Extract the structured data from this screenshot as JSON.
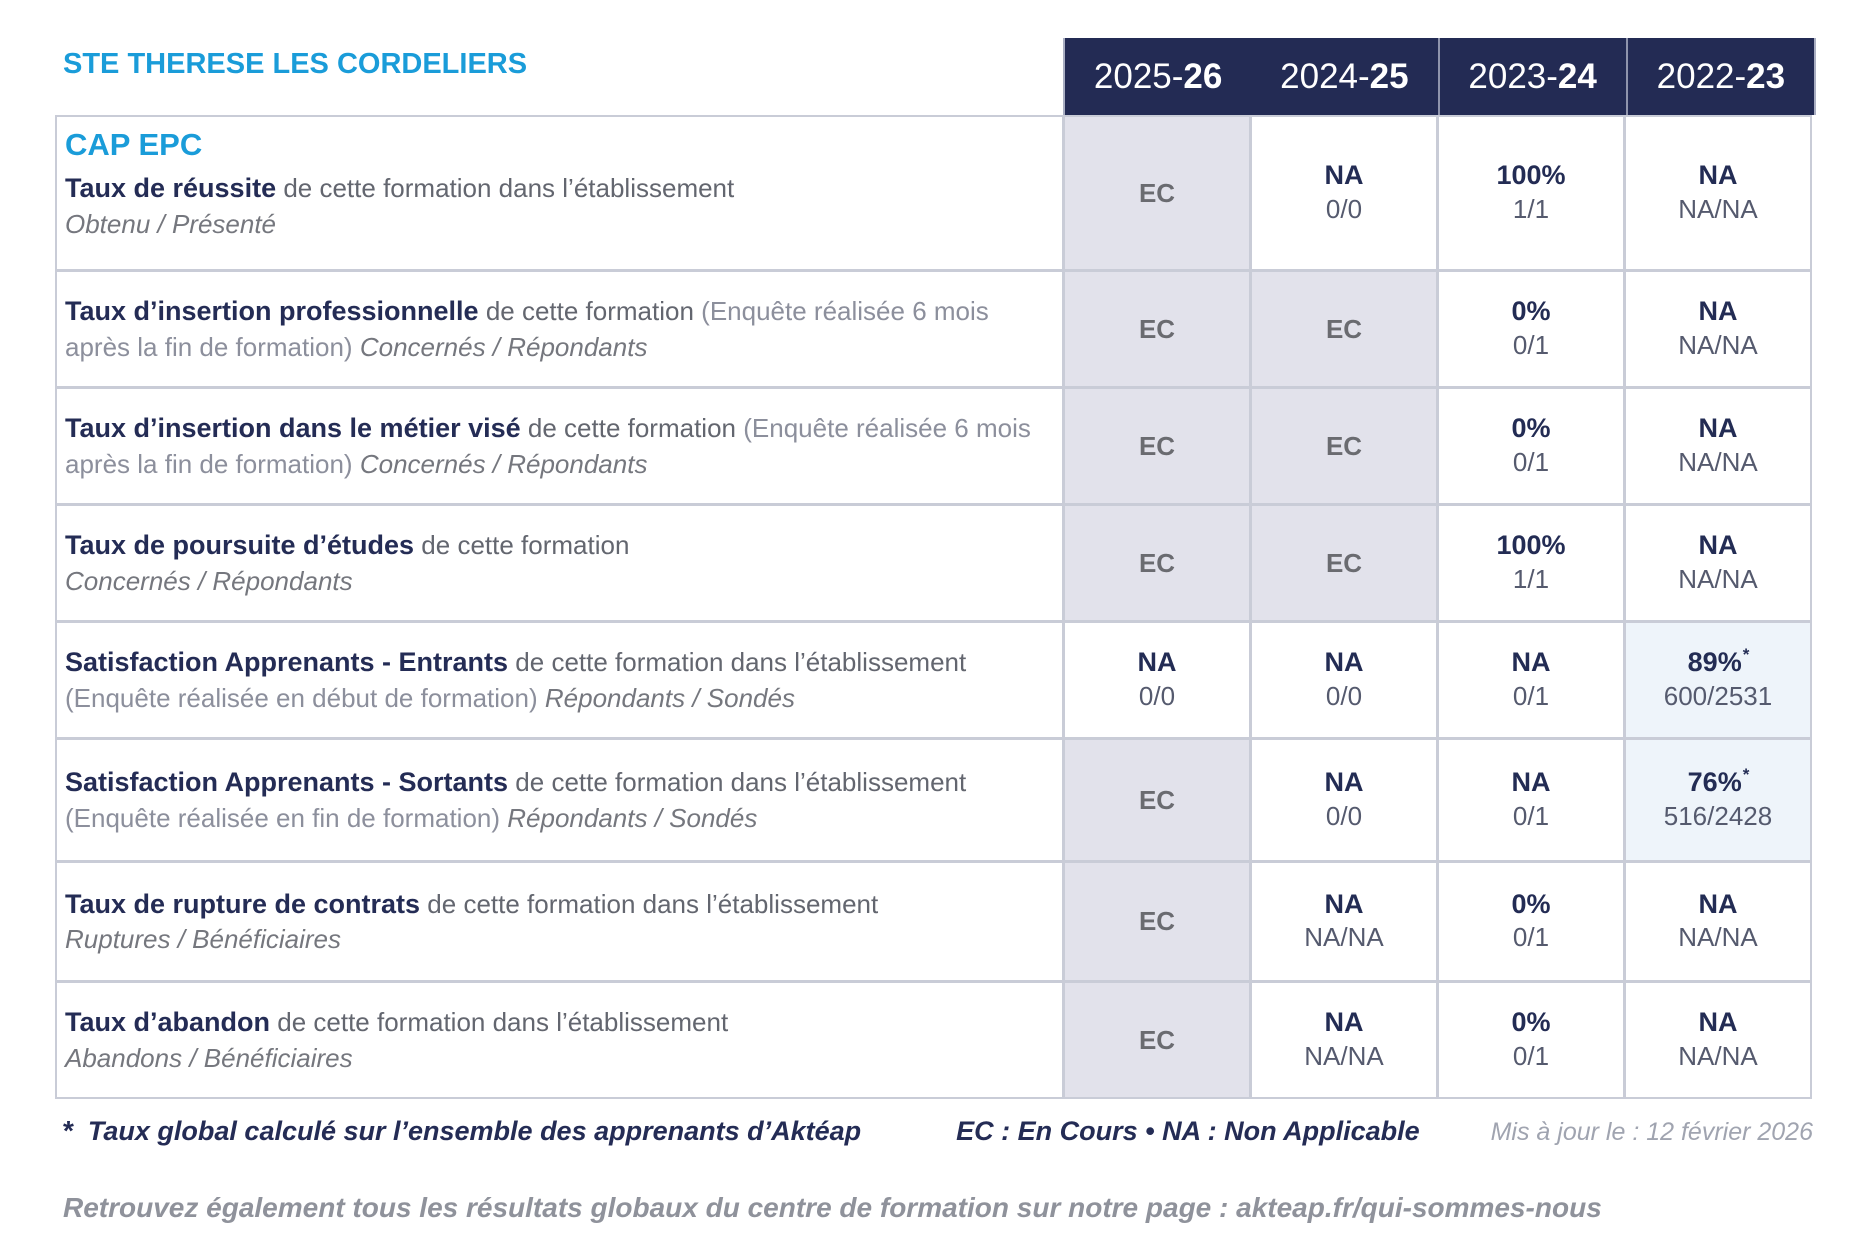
{
  "page": {
    "site_title": "STE THERESE LES CORDELIERS",
    "program_title": "CAP EPC"
  },
  "header": {
    "background": "#232B54",
    "years": [
      {
        "prefix": "2025-",
        "bold": "26"
      },
      {
        "prefix": "2024-",
        "bold": "25"
      },
      {
        "prefix": "2023-",
        "bold": "24"
      },
      {
        "prefix": "2022-",
        "bold": "23"
      }
    ]
  },
  "colors": {
    "accent_blue": "#1A9CD9",
    "navy": "#232B54",
    "ec_cell_bg": "#E2E2EB",
    "highlight_cell_bg": "#EEF4FA",
    "grid_border": "#C9CCD7",
    "gray_text": "#63666F"
  },
  "table": {
    "rows": [
      {
        "title": "Taux de réussite",
        "desc": "de cette formation dans l’établissement",
        "sub": "Obtenu / Présenté",
        "cells": [
          {
            "type": "ec",
            "main": "EC"
          },
          {
            "type": "value",
            "main": "NA",
            "sub": "0/0"
          },
          {
            "type": "value",
            "main": "100%",
            "sub": "1/1"
          },
          {
            "type": "value",
            "main": "NA",
            "sub": "NA/NA"
          }
        ]
      },
      {
        "title": "Taux d’insertion professionnelle",
        "desc": "de cette formation",
        "paren": "(Enquête réalisée 6 mois après la fin de formation)",
        "sub": "Concernés / Répondants",
        "cells": [
          {
            "type": "ec",
            "main": "EC"
          },
          {
            "type": "ec",
            "main": "EC"
          },
          {
            "type": "value",
            "main": "0%",
            "sub": "0/1"
          },
          {
            "type": "value",
            "main": "NA",
            "sub": "NA/NA"
          }
        ]
      },
      {
        "title": "Taux d’insertion dans le métier visé",
        "desc": "de cette formation",
        "paren": "(Enquête réalisée 6 mois après la fin de formation)",
        "sub": "Concernés / Répondants",
        "cells": [
          {
            "type": "ec",
            "main": "EC"
          },
          {
            "type": "ec",
            "main": "EC"
          },
          {
            "type": "value",
            "main": "0%",
            "sub": "0/1"
          },
          {
            "type": "value",
            "main": "NA",
            "sub": "NA/NA"
          }
        ]
      },
      {
        "title": "Taux de poursuite d’études",
        "desc": "de cette formation",
        "sub": "Concernés / Répondants",
        "cells": [
          {
            "type": "ec",
            "main": "EC"
          },
          {
            "type": "ec",
            "main": "EC"
          },
          {
            "type": "value",
            "main": "100%",
            "sub": "1/1"
          },
          {
            "type": "value",
            "main": "NA",
            "sub": "NA/NA"
          }
        ]
      },
      {
        "title": "Satisfaction Apprenants - Entrants",
        "desc": "de cette formation dans l’établissement",
        "paren": "(Enquête réalisée en début de formation)",
        "sub": "Répondants / Sondés",
        "cells": [
          {
            "type": "value",
            "main": "NA",
            "sub": "0/0"
          },
          {
            "type": "value",
            "main": "NA",
            "sub": "0/0"
          },
          {
            "type": "value",
            "main": "NA",
            "sub": "0/1"
          },
          {
            "type": "highlight",
            "main": "89%",
            "star": "*",
            "sub": "600/2531"
          }
        ]
      },
      {
        "title": "Satisfaction Apprenants - Sortants",
        "desc": "de cette formation dans l’établissement",
        "paren": "(Enquête réalisée en fin de formation)",
        "sub": "Répondants / Sondés",
        "cells": [
          {
            "type": "ec",
            "main": "EC"
          },
          {
            "type": "value",
            "main": "NA",
            "sub": "0/0"
          },
          {
            "type": "value",
            "main": "NA",
            "sub": "0/1"
          },
          {
            "type": "highlight",
            "main": "76%",
            "star": "*",
            "sub": "516/2428"
          }
        ]
      },
      {
        "title": "Taux de rupture de contrats",
        "desc": "de cette formation dans l’établissement",
        "sub": "Ruptures / Bénéficiaires",
        "cells": [
          {
            "type": "ec",
            "main": "EC"
          },
          {
            "type": "value",
            "main": "NA",
            "sub": "NA/NA"
          },
          {
            "type": "value",
            "main": "0%",
            "sub": "0/1"
          },
          {
            "type": "value",
            "main": "NA",
            "sub": "NA/NA"
          }
        ]
      },
      {
        "title": "Taux d’abandon",
        "desc": "de cette formation dans l’établissement",
        "sub": "Abandons / Bénéficiaires",
        "cells": [
          {
            "type": "ec",
            "main": "EC"
          },
          {
            "type": "value",
            "main": "NA",
            "sub": "NA/NA"
          },
          {
            "type": "value",
            "main": "0%",
            "sub": "0/1"
          },
          {
            "type": "value",
            "main": "NA",
            "sub": "NA/NA"
          }
        ]
      }
    ]
  },
  "footer": {
    "star": "*",
    "note": "Taux global calculé sur l’ensemble des apprenants d’Aktéap",
    "legend": "EC : En Cours   •   NA : Non Applicable",
    "updated": "Mis à jour le : 12 février 2026",
    "bottom_prefix": "Retrouvez également tous les résultats globaux du centre de formation sur notre page : ",
    "bottom_link": "akteap.fr/qui-sommes-nous"
  }
}
